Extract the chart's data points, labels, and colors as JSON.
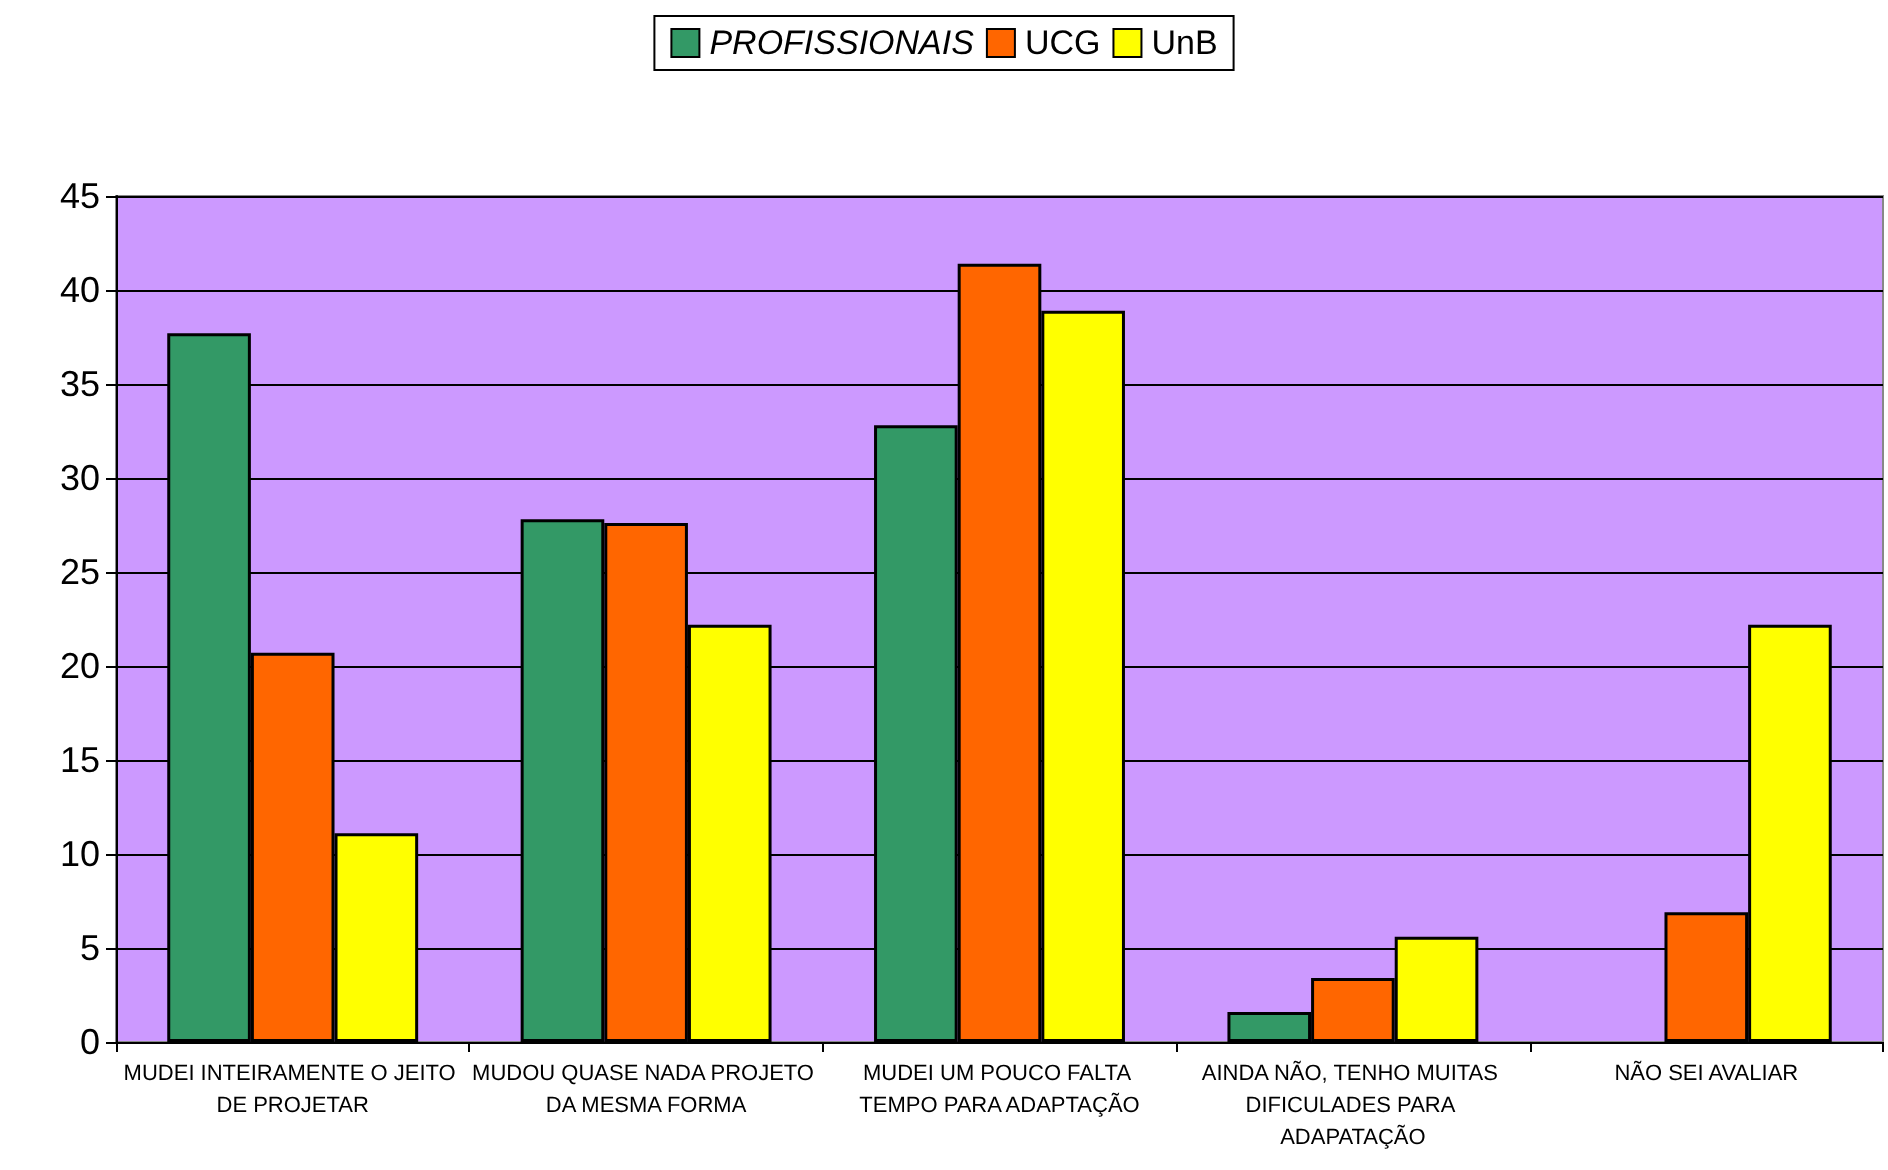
{
  "chart_data": {
    "type": "bar",
    "categories": [
      "MUDEI INTEIRAMENTE O JEITO DE PROJETAR",
      "MUDOU QUASE NADA PROJETO DA MESMA FORMA",
      "MUDEI UM POUCO FALTA TEMPO PARA ADAPTAÇÃO",
      "AINDA NÃO, TENHO MUITAS DIFICULADES PARA ADAPATAÇÃO",
      "NÃO SEI AVALIAR"
    ],
    "series": [
      {
        "name": "PROFISSIONAIS",
        "color": "#339966",
        "values": [
          37.7,
          27.8,
          32.8,
          1.6,
          null
        ]
      },
      {
        "name": "UCG",
        "color": "#ff6600",
        "values": [
          20.7,
          27.6,
          41.4,
          3.4,
          6.9
        ]
      },
      {
        "name": "UnB",
        "color": "#ffff00",
        "values": [
          11.1,
          22.2,
          38.9,
          5.6,
          22.2
        ]
      }
    ],
    "ylim": [
      0,
      45
    ],
    "yticks": [
      0,
      5,
      10,
      15,
      20,
      25,
      30,
      35,
      40,
      45
    ],
    "grid": "y",
    "legend": "top"
  }
}
